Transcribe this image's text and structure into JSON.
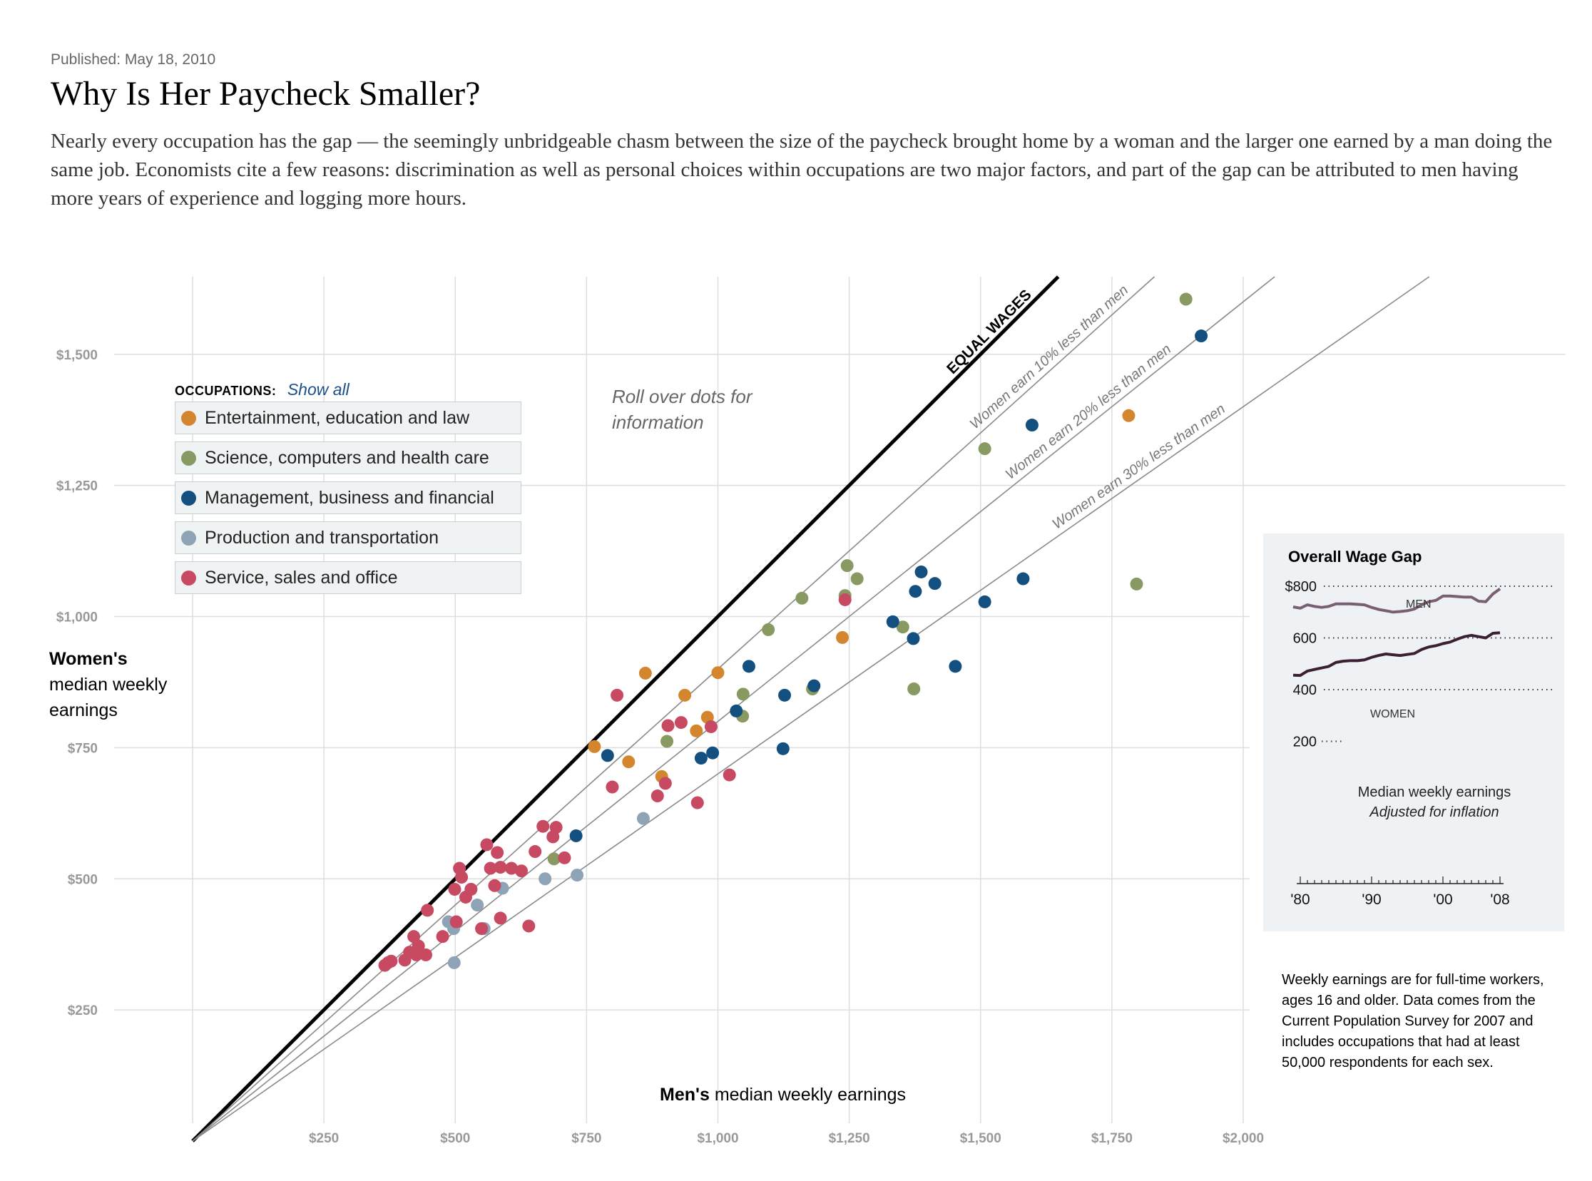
{
  "header": {
    "published": "Published: May 18, 2010",
    "title": "Why Is Her Paycheck Smaller?",
    "intro": "Nearly every occupation has the gap — the seemingly unbridgeable chasm between the size of the paycheck brought home by a woman and the larger one earned by a man doing the same job. Economists cite a few reasons: discrimination as well as personal choices within occupations are two major factors, and part of the gap can be attributed to men having more years of experience and logging more hours."
  },
  "legend": {
    "heading": "OCCUPATIONS:",
    "show_all": "Show all",
    "items": [
      {
        "label": "Entertainment, education and law",
        "color": "#d4862f"
      },
      {
        "label": "Science, computers and health care",
        "color": "#889a62"
      },
      {
        "label": "Management, business and financial",
        "color": "#13507f"
      },
      {
        "label": "Production and transportation",
        "color": "#8ea3b6"
      },
      {
        "label": "Service, sales and office",
        "color": "#c84a62"
      }
    ]
  },
  "roll_over_note": "Roll over dots for information",
  "axis_titles": {
    "y_bold": "Women's",
    "y_rest": "median weekly earnings",
    "x_bold": "Men's",
    "x_rest": "median weekly earnings"
  },
  "inset": {
    "title": "Overall Wage Gap",
    "y_ticks": [
      "$800",
      "600",
      "400",
      "200"
    ],
    "x_ticks": [
      "'80",
      "'90",
      "'00",
      "'08"
    ],
    "men_label": "MEN",
    "women_label": "WOMEN",
    "note_line1": "Median weekly earnings",
    "note_line2": "Adjusted for inflation",
    "years": [
      1979,
      1980,
      1981,
      1982,
      1983,
      1984,
      1985,
      1986,
      1987,
      1988,
      1989,
      1990,
      1991,
      1992,
      1993,
      1994,
      1995,
      1996,
      1997,
      1998,
      1999,
      2000,
      2001,
      2002,
      2003,
      2004,
      2005,
      2006,
      2007,
      2008
    ],
    "men_values": [
      720,
      715,
      728,
      722,
      718,
      722,
      732,
      732,
      732,
      730,
      728,
      718,
      710,
      705,
      700,
      702,
      705,
      712,
      728,
      740,
      745,
      762,
      762,
      760,
      758,
      758,
      742,
      740,
      770,
      790
    ],
    "women_values": [
      456,
      455,
      472,
      478,
      484,
      490,
      505,
      510,
      512,
      512,
      515,
      525,
      532,
      538,
      535,
      532,
      536,
      540,
      555,
      565,
      570,
      578,
      584,
      595,
      605,
      610,
      605,
      600,
      618,
      620
    ]
  },
  "footnote": "Weekly earnings are for full-time workers, ages 16 and older. Data comes from the Current Population Survey for 2007 and includes occupations that had at least 50,000 respondents for each sex.",
  "chart_data": {
    "type": "scatter",
    "xlabel": "Men's median weekly earnings",
    "ylabel": "Women's median weekly earnings",
    "xlim": [
      0,
      2000
    ],
    "ylim": [
      0,
      1650
    ],
    "x_ticks": [
      {
        "v": 250,
        "label": "$250"
      },
      {
        "v": 500,
        "label": "$500"
      },
      {
        "v": 750,
        "label": "$750"
      },
      {
        "v": 1000,
        "label": "$1,000"
      },
      {
        "v": 1250,
        "label": "$1,250"
      },
      {
        "v": 1500,
        "label": "$1,500"
      },
      {
        "v": 1750,
        "label": "$1,750"
      },
      {
        "v": 2000,
        "label": "$2,000"
      }
    ],
    "y_ticks": [
      {
        "v": 250,
        "label": "$250"
      },
      {
        "v": 500,
        "label": "$500"
      },
      {
        "v": 750,
        "label": "$750"
      },
      {
        "v": 1000,
        "label": "$1,000"
      },
      {
        "v": 1250,
        "label": "$1,250"
      },
      {
        "v": 1500,
        "label": "$1,500"
      }
    ],
    "reference_lines": [
      {
        "ratio": 1.0,
        "label": "EQUAL WAGES",
        "label_x": 1450
      },
      {
        "ratio": 0.9,
        "label": "Women earn 10% less than men",
        "label_x": 1495
      },
      {
        "ratio": 0.8,
        "label": "Women earn 20% less than men",
        "label_x": 1562
      },
      {
        "ratio": 0.7,
        "label": "Women earn 30% less than men",
        "label_x": 1650
      }
    ],
    "grid": true,
    "series": [
      {
        "name": "Entertainment, education and law",
        "color": "#d4862f",
        "points": [
          [
            765,
            752
          ],
          [
            830,
            723
          ],
          [
            862,
            892
          ],
          [
            893,
            695
          ],
          [
            937,
            850
          ],
          [
            959,
            782
          ],
          [
            980,
            808
          ],
          [
            1000,
            893
          ],
          [
            1237,
            960
          ],
          [
            1782,
            1383
          ]
        ]
      },
      {
        "name": "Science, computers and health care",
        "color": "#889a62",
        "points": [
          [
            1891,
            1605
          ],
          [
            1508,
            1320
          ],
          [
            1246,
            1097
          ],
          [
            1265,
            1072
          ],
          [
            1242,
            1040
          ],
          [
            1160,
            1035
          ],
          [
            1096,
            975
          ],
          [
            1048,
            852
          ],
          [
            1047,
            810
          ],
          [
            903,
            762
          ],
          [
            1180,
            862
          ],
          [
            1352,
            980
          ],
          [
            1373,
            862
          ],
          [
            1797,
            1062
          ],
          [
            688,
            538
          ]
        ]
      },
      {
        "name": "Management, business and financial",
        "color": "#13507f",
        "points": [
          [
            1920,
            1535
          ],
          [
            1598,
            1365
          ],
          [
            1387,
            1085
          ],
          [
            1413,
            1063
          ],
          [
            1376,
            1048
          ],
          [
            1581,
            1072
          ],
          [
            1508,
            1028
          ],
          [
            1333,
            990
          ],
          [
            1372,
            958
          ],
          [
            1452,
            905
          ],
          [
            1059,
            905
          ],
          [
            1035,
            820
          ],
          [
            1127,
            850
          ],
          [
            1183,
            868
          ],
          [
            790,
            735
          ],
          [
            968,
            730
          ],
          [
            990,
            740
          ],
          [
            1124,
            748
          ],
          [
            730,
            582
          ]
        ]
      },
      {
        "name": "Production and transportation",
        "color": "#8ea3b6",
        "points": [
          [
            487,
            418
          ],
          [
            497,
            405
          ],
          [
            498,
            340
          ],
          [
            530,
            480
          ],
          [
            542,
            450
          ],
          [
            555,
            405
          ],
          [
            590,
            482
          ],
          [
            671,
            500
          ],
          [
            732,
            507
          ],
          [
            858,
            615
          ]
        ]
      },
      {
        "name": "Service, sales and office",
        "color": "#c84a62",
        "points": [
          [
            366,
            335
          ],
          [
            372,
            340
          ],
          [
            378,
            343
          ],
          [
            404,
            345
          ],
          [
            413,
            360
          ],
          [
            421,
            390
          ],
          [
            426,
            355
          ],
          [
            430,
            372
          ],
          [
            444,
            355
          ],
          [
            447,
            440
          ],
          [
            476,
            390
          ],
          [
            499,
            480
          ],
          [
            502,
            418
          ],
          [
            508,
            520
          ],
          [
            512,
            503
          ],
          [
            520,
            465
          ],
          [
            530,
            480
          ],
          [
            560,
            565
          ],
          [
            567,
            520
          ],
          [
            575,
            487
          ],
          [
            580,
            550
          ],
          [
            586,
            522
          ],
          [
            586,
            425
          ],
          [
            607,
            520
          ],
          [
            626,
            515
          ],
          [
            640,
            410
          ],
          [
            652,
            552
          ],
          [
            667,
            600
          ],
          [
            686,
            580
          ],
          [
            692,
            598
          ],
          [
            708,
            540
          ],
          [
            808,
            850
          ],
          [
            799,
            675
          ],
          [
            885,
            658
          ],
          [
            900,
            682
          ],
          [
            905,
            792
          ],
          [
            930,
            798
          ],
          [
            961,
            645
          ],
          [
            987,
            790
          ],
          [
            1022,
            698
          ],
          [
            1242,
            1032
          ],
          [
            550,
            405
          ]
        ]
      }
    ]
  }
}
